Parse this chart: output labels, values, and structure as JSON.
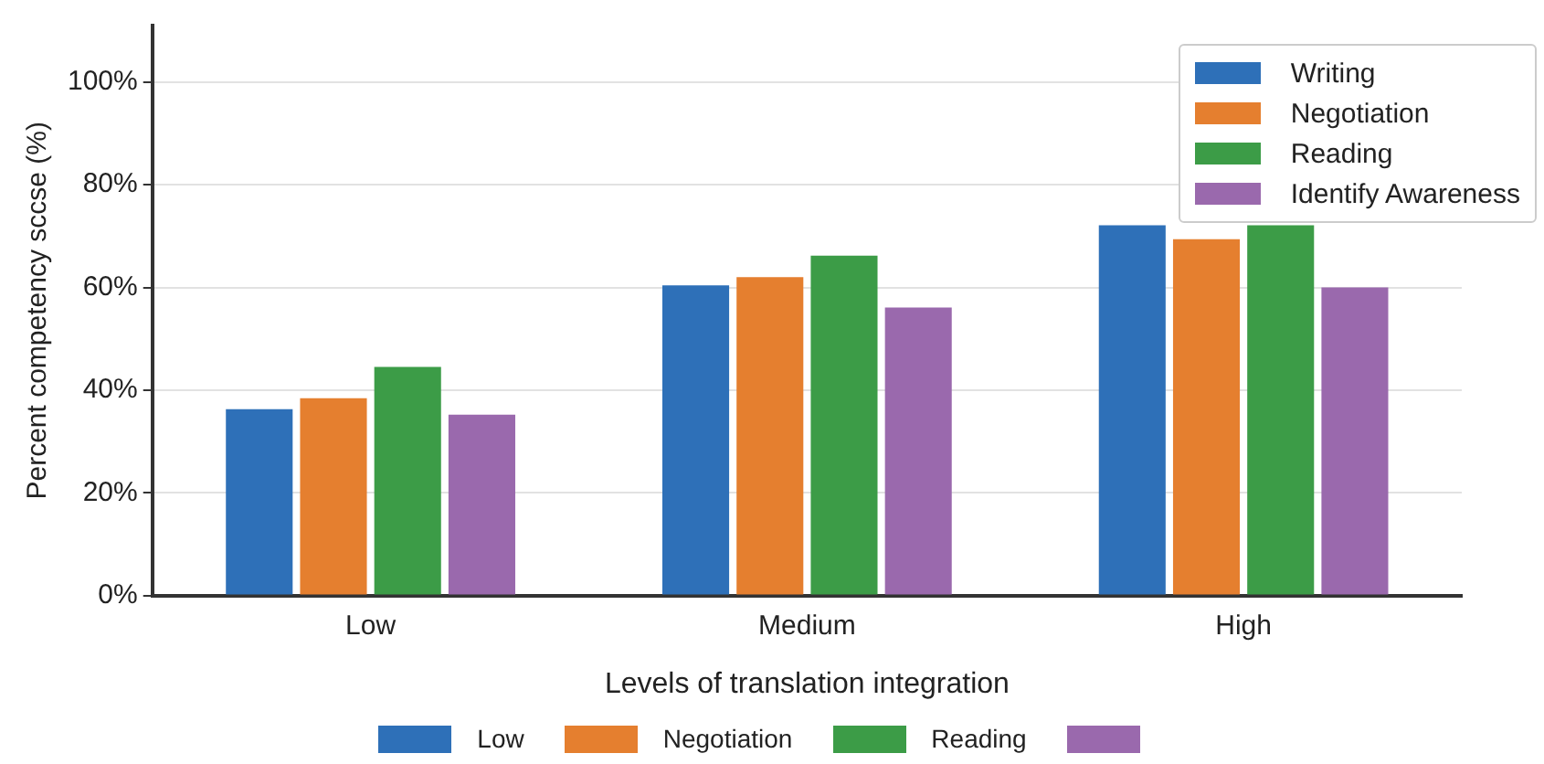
{
  "chart_data": {
    "type": "bar",
    "xlabel": "Levels of translation integration",
    "ylabel": "Percent competency sccse (%)",
    "categories": [
      "Low",
      "Medium",
      "High"
    ],
    "series": [
      {
        "name": "Writing",
        "color": "#2e70b8",
        "values": [
          36.3,
          60.4,
          72.1
        ]
      },
      {
        "name": "Negotiation",
        "color": "#e57f2f",
        "values": [
          38.4,
          62,
          69.4
        ]
      },
      {
        "name": "Reading",
        "color": "#3c9c47",
        "values": [
          44.5,
          66.2,
          72.1
        ]
      },
      {
        "name": "Identify Awareness",
        "color": "#9a69ad",
        "values": [
          35.2,
          56.1,
          60
        ]
      }
    ],
    "ylim": [
      0,
      111
    ],
    "yticks": [
      {
        "value": 0,
        "label": "0%"
      },
      {
        "value": 20,
        "label": "20%"
      },
      {
        "value": 40,
        "label": "40%"
      },
      {
        "value": 60,
        "label": "60%"
      },
      {
        "value": 80,
        "label": "80%"
      },
      {
        "value": 100,
        "label": "100%"
      }
    ],
    "grid": "y",
    "legend": "top right",
    "annotations": [
      "Low",
      "Negotiation",
      "Reading",
      null
    ]
  }
}
